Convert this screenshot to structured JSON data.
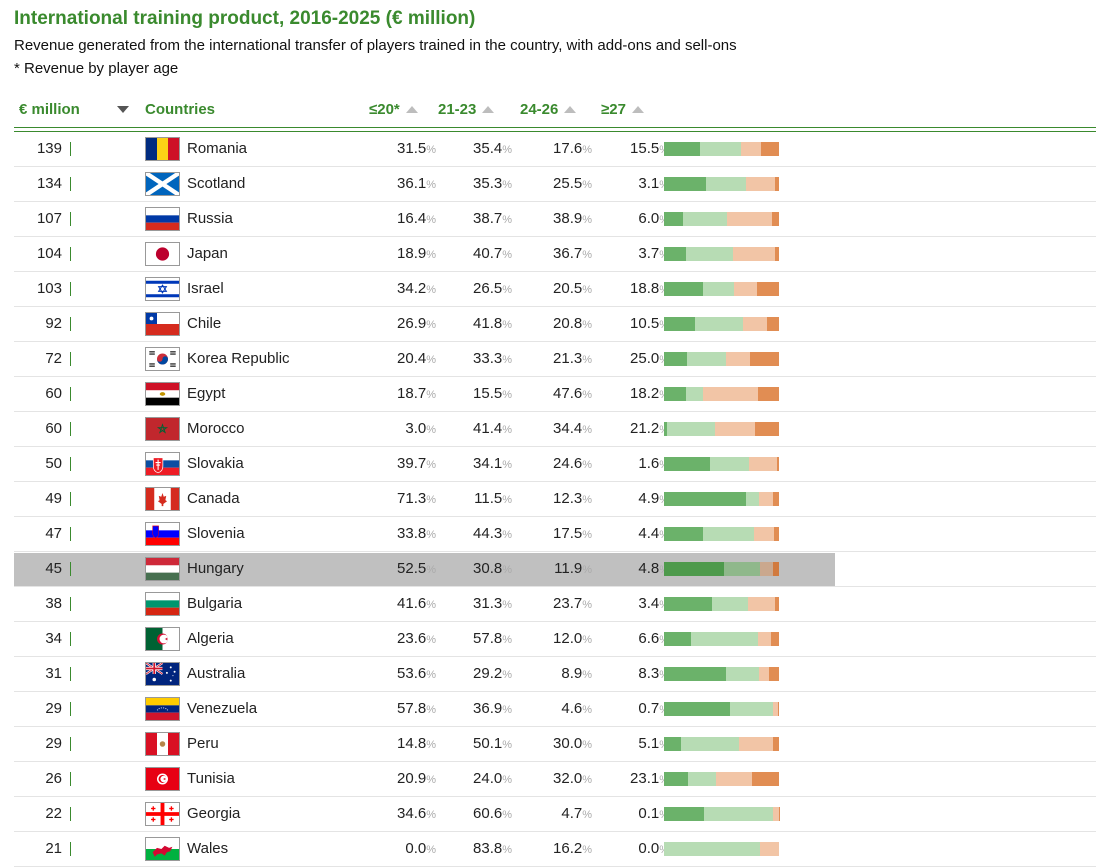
{
  "header": {
    "title": "International training product, 2016-2025 (€ million)",
    "subtitle": "Revenue generated from the international transfer of players trained in the country, with add-ons and sell-ons",
    "note": "* Revenue by player age"
  },
  "columns": {
    "value": "€ million",
    "countries": "Countries",
    "age1": "≤20*",
    "age2": "21-23",
    "age3": "24-26",
    "age4": "≥27"
  },
  "colors": {
    "accent": "#3a8a2e",
    "seg1": "#6bb26a",
    "seg2": "#b7dcb4",
    "seg3": "#f2c5a6",
    "seg4": "#e18d53",
    "seg1_hl": "#4e9a4c",
    "seg2_hl": "#8fb88b",
    "seg3_hl": "#caa88e",
    "seg4_hl": "#d17a3e",
    "highlight": "#c0c0c0"
  },
  "pct_unit": "%",
  "chart_data": {
    "type": "table",
    "title": "International training product, 2016-2025 (€ million)",
    "series_names": [
      "≤20*",
      "21-23",
      "24-26",
      "≥27"
    ],
    "highlighted": "Hungary",
    "rows": [
      {
        "value": 139,
        "country": "Romania",
        "flag": "romania-flag",
        "p": [
          31.5,
          35.4,
          17.6,
          15.5
        ]
      },
      {
        "value": 134,
        "country": "Scotland",
        "flag": "scotland-flag",
        "p": [
          36.1,
          35.3,
          25.5,
          3.1
        ]
      },
      {
        "value": 107,
        "country": "Russia",
        "flag": "russia-flag",
        "p": [
          16.4,
          38.7,
          38.9,
          6.0
        ]
      },
      {
        "value": 104,
        "country": "Japan",
        "flag": "japan-flag",
        "p": [
          18.9,
          40.7,
          36.7,
          3.7
        ]
      },
      {
        "value": 103,
        "country": "Israel",
        "flag": "israel-flag",
        "p": [
          34.2,
          26.5,
          20.5,
          18.8
        ]
      },
      {
        "value": 92,
        "country": "Chile",
        "flag": "chile-flag",
        "p": [
          26.9,
          41.8,
          20.8,
          10.5
        ]
      },
      {
        "value": 72,
        "country": "Korea Republic",
        "flag": "korea-flag",
        "p": [
          20.4,
          33.3,
          21.3,
          25.0
        ]
      },
      {
        "value": 60,
        "country": "Egypt",
        "flag": "egypt-flag",
        "p": [
          18.7,
          15.5,
          47.6,
          18.2
        ]
      },
      {
        "value": 60,
        "country": "Morocco",
        "flag": "morocco-flag",
        "p": [
          3.0,
          41.4,
          34.4,
          21.2
        ]
      },
      {
        "value": 50,
        "country": "Slovakia",
        "flag": "slovakia-flag",
        "p": [
          39.7,
          34.1,
          24.6,
          1.6
        ]
      },
      {
        "value": 49,
        "country": "Canada",
        "flag": "canada-flag",
        "p": [
          71.3,
          11.5,
          12.3,
          4.9
        ]
      },
      {
        "value": 47,
        "country": "Slovenia",
        "flag": "slovenia-flag",
        "p": [
          33.8,
          44.3,
          17.5,
          4.4
        ]
      },
      {
        "value": 45,
        "country": "Hungary",
        "flag": "hungary-flag",
        "p": [
          52.5,
          30.8,
          11.9,
          4.8
        ]
      },
      {
        "value": 38,
        "country": "Bulgaria",
        "flag": "bulgaria-flag",
        "p": [
          41.6,
          31.3,
          23.7,
          3.4
        ]
      },
      {
        "value": 34,
        "country": "Algeria",
        "flag": "algeria-flag",
        "p": [
          23.6,
          57.8,
          12.0,
          6.6
        ]
      },
      {
        "value": 31,
        "country": "Australia",
        "flag": "australia-flag",
        "p": [
          53.6,
          29.2,
          8.9,
          8.3
        ]
      },
      {
        "value": 29,
        "country": "Venezuela",
        "flag": "venezuela-flag",
        "p": [
          57.8,
          36.9,
          4.6,
          0.7
        ]
      },
      {
        "value": 29,
        "country": "Peru",
        "flag": "peru-flag",
        "p": [
          14.8,
          50.1,
          30.0,
          5.1
        ]
      },
      {
        "value": 26,
        "country": "Tunisia",
        "flag": "tunisia-flag",
        "p": [
          20.9,
          24.0,
          32.0,
          23.1
        ]
      },
      {
        "value": 22,
        "country": "Georgia",
        "flag": "georgia-flag",
        "p": [
          34.6,
          60.6,
          4.7,
          0.1
        ]
      },
      {
        "value": 21,
        "country": "Wales",
        "flag": "wales-flag",
        "p": [
          0.0,
          83.8,
          16.2,
          0.0
        ]
      }
    ]
  }
}
